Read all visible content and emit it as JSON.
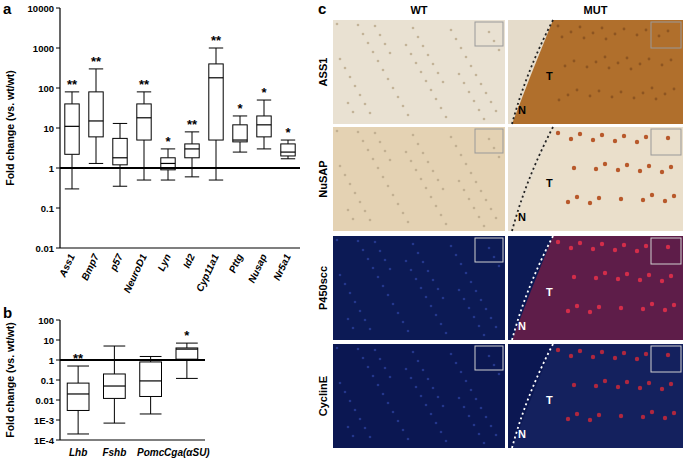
{
  "chart_data": [
    {
      "type": "box",
      "title": "a",
      "y_label": "Fold change (vs. wt/wt)",
      "log": "y",
      "grid": false,
      "ylim": [
        0.01,
        10000
      ],
      "yticks": [
        0.01,
        0.1,
        1,
        10,
        100,
        1000,
        10000
      ],
      "hline": 1,
      "categories": [
        "Ass1",
        "Bmp7",
        "p57",
        "NeuroD1",
        "Lyn",
        "Id2",
        "Cyp11a1",
        "Pttg",
        "Nusap",
        "Nr5a1"
      ],
      "values": [
        {
          "min": 0.3,
          "q1": 2.2,
          "median": 11,
          "q3": 40,
          "max": 80
        },
        {
          "min": 1.3,
          "q1": 6,
          "median": 15,
          "q3": 80,
          "max": 300
        },
        {
          "min": 0.35,
          "q1": 1.2,
          "median": 1.8,
          "q3": 5.5,
          "max": 13
        },
        {
          "min": 0.5,
          "q1": 5,
          "median": 18,
          "q3": 40,
          "max": 80
        },
        {
          "min": 0.5,
          "q1": 0.9,
          "median": 1.3,
          "q3": 1.8,
          "max": 3
        },
        {
          "min": 0.6,
          "q1": 1.8,
          "median": 3,
          "q3": 4,
          "max": 8
        },
        {
          "min": 0.5,
          "q1": 5,
          "median": 180,
          "q3": 400,
          "max": 1000
        },
        {
          "min": 2.5,
          "q1": 4.5,
          "median": 5,
          "q3": 12,
          "max": 20
        },
        {
          "min": 3,
          "q1": 6,
          "median": 12,
          "q3": 20,
          "max": 50
        },
        {
          "min": 1.7,
          "q1": 2,
          "median": 2.5,
          "q3": 4,
          "max": 5
        }
      ],
      "annotations": [
        "**",
        "**",
        null,
        "**",
        "*",
        "**",
        "**",
        "*",
        "*",
        "*"
      ]
    },
    {
      "type": "box",
      "title": "b",
      "y_label": "Fold change (vs. wt/wt)",
      "log": "y",
      "grid": false,
      "ylim": [
        0.0001,
        100
      ],
      "yticks": [
        {
          "value": 0.0001,
          "label": "1E-4"
        },
        {
          "value": 0.001,
          "label": "1E-3"
        },
        0.01,
        0.1,
        1,
        10,
        100
      ],
      "hline": 1,
      "categories": [
        "Lhb",
        "Fshb",
        "Pomc",
        "Cga(αSU)"
      ],
      "values": [
        {
          "min": 0.0002,
          "q1": 0.003,
          "median": 0.02,
          "q3": 0.07,
          "max": 0.5
        },
        {
          "min": 0.0007,
          "q1": 0.012,
          "median": 0.05,
          "q3": 0.2,
          "max": 5
        },
        {
          "min": 0.002,
          "q1": 0.015,
          "median": 0.09,
          "q3": 0.8,
          "max": 1.5
        },
        {
          "min": 0.12,
          "q1": 1.1,
          "median": 3.5,
          "q3": 4,
          "max": 7
        }
      ],
      "annotations": [
        "**",
        null,
        null,
        "*"
      ]
    }
  ],
  "images": {
    "title": "c",
    "columns": [
      "WT",
      "MUT"
    ],
    "rows": [
      "ASS1",
      "NuSAP",
      "P450scc",
      "CyclinE"
    ],
    "region_labels": [
      "N",
      "T"
    ]
  }
}
